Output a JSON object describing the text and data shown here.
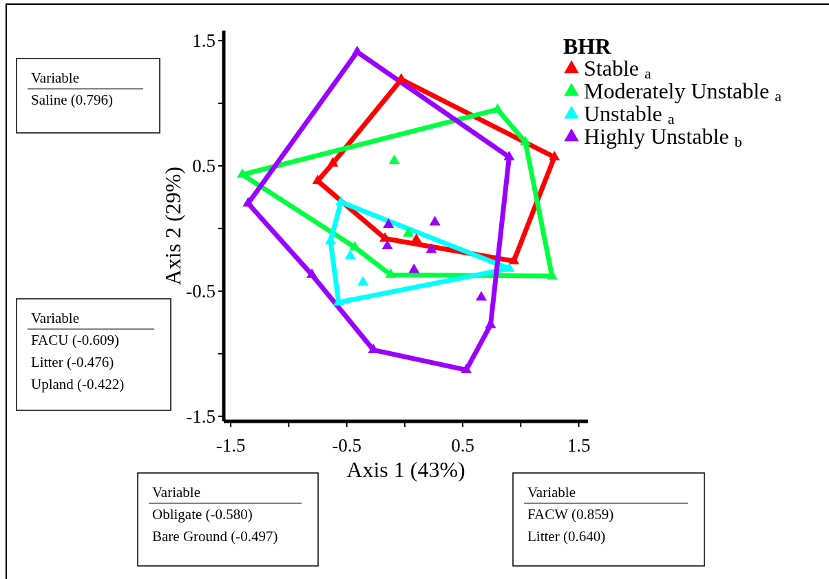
{
  "chart_data": {
    "type": "scatter",
    "xlabel": "Axis 1 (43%)",
    "ylabel": "Axis 2 (29%)",
    "legend_title": "BHR",
    "legend": "top right",
    "marker": "triangle",
    "line_style": "solid",
    "grid": false,
    "xlim": [
      -1.56,
      1.58
    ],
    "ylim": [
      -1.54,
      1.58
    ],
    "xticks": [
      -1.5,
      {
        "value": -1,
        "label": null
      },
      -0.5,
      {
        "value": 0,
        "label": null
      },
      0.5,
      {
        "value": 1,
        "label": null
      },
      1.5
    ],
    "yticks": [
      -1.5,
      {
        "value": -1,
        "label": null
      },
      -0.5,
      {
        "value": 0,
        "label": null
      },
      0.5,
      {
        "value": 1,
        "label": null
      },
      1.5
    ],
    "series": [
      {
        "type": "line",
        "marker": "none",
        "color": "#ff0000",
        "x": [
          -0.75,
          -0.62,
          -0.03,
          1.29
        ],
        "values": [
          0.38,
          0.52,
          1.19,
          0.57
        ]
      },
      {
        "type": "line",
        "marker": "none",
        "color": "#ff0000",
        "x": [
          -0.75,
          -0.17,
          0.94,
          1.29
        ],
        "values": [
          0.38,
          -0.08,
          -0.26,
          0.57
        ]
      },
      {
        "type": "line",
        "marker": "none",
        "color": "#00ff40",
        "x": [
          -1.4,
          0.8,
          1.04,
          1.27
        ],
        "values": [
          0.43,
          0.95,
          0.69,
          -0.38
        ]
      },
      {
        "type": "line",
        "marker": "none",
        "color": "#00ff40",
        "x": [
          -1.4,
          -0.43,
          -0.12,
          1.27
        ],
        "values": [
          0.43,
          -0.15,
          -0.37,
          -0.38
        ]
      },
      {
        "type": "line",
        "marker": "none",
        "color": "#00ffff",
        "x": [
          -0.64,
          -0.55,
          0.9
        ],
        "values": [
          -0.1,
          0.21,
          -0.32
        ]
      },
      {
        "type": "line",
        "marker": "none",
        "color": "#00ffff",
        "x": [
          -0.64,
          -0.57,
          0.9
        ],
        "values": [
          -0.1,
          -0.59,
          -0.32
        ]
      },
      {
        "type": "line",
        "marker": "none",
        "color": "#9900ff",
        "x": [
          -1.35,
          -0.41,
          0.9
        ],
        "values": [
          0.2,
          1.41,
          0.57
        ]
      },
      {
        "type": "line",
        "marker": "none",
        "color": "#9900ff",
        "x": [
          -1.35,
          -0.8,
          -0.27,
          0.53,
          0.74,
          0.9
        ],
        "values": [
          0.2,
          -0.37,
          -0.97,
          -1.13,
          -0.77,
          0.57
        ]
      },
      {
        "type": "scatter",
        "name": "Stable $_{a}$",
        "color": "#ff0000",
        "x": [
          -0.03,
          1.29,
          0.94,
          -0.17,
          -0.75,
          -0.62,
          0.1
        ],
        "values": [
          1.19,
          0.57,
          -0.26,
          -0.08,
          0.38,
          0.52,
          -0.09
        ]
      },
      {
        "type": "scatter",
        "name": "Moderately Unstable $_{a}$",
        "color": "#00ff40",
        "x": [
          -1.4,
          0.8,
          1.04,
          1.27,
          -0.12,
          -0.43,
          -0.09,
          0.03
        ],
        "values": [
          0.43,
          0.95,
          0.69,
          -0.38,
          -0.37,
          -0.15,
          0.54,
          -0.04
        ]
      },
      {
        "type": "scatter",
        "name": "Unstable $_{a}$",
        "color": "#00ffff",
        "x": [
          -0.55,
          0.9,
          -0.57,
          -0.64,
          -0.47,
          -0.36
        ],
        "values": [
          0.21,
          -0.32,
          -0.59,
          -0.1,
          -0.22,
          -0.43
        ]
      },
      {
        "type": "scatter",
        "name": "Highly Unstable $_{b}$",
        "color": "#9900ff",
        "x": [
          -0.41,
          0.9,
          0.74,
          0.53,
          -0.27,
          -0.8,
          -1.35,
          -0.14,
          -0.15,
          0.08,
          0.23,
          0.26,
          0.66
        ],
        "values": [
          1.41,
          0.57,
          -0.77,
          -1.13,
          -0.97,
          -0.37,
          0.2,
          0.03,
          -0.14,
          -0.33,
          -0.17,
          0.05,
          -0.55
        ]
      }
    ],
    "annotations": [
      "Variable\nSaline (0.796)",
      "Variable\nFACU (-0.609)\nLitter (-0.476)\nUpland (-0.422)",
      "Variable\nObligate (-0.580)\nBare Ground (-0.497)",
      "Variable\nFACW (0.859)\nLitter (0.640)"
    ]
  }
}
